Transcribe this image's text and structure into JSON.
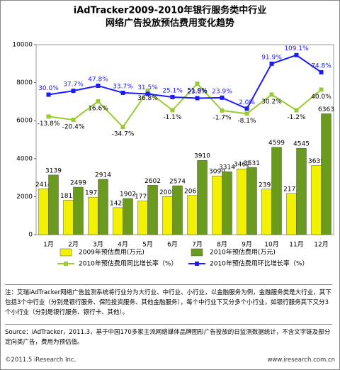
{
  "chart_data": {
    "type": "bar",
    "title": [
      "iAdTracker2009-2010年银行服务类中行业",
      "网络广告投放预估费用变化趋势"
    ],
    "categories": [
      "1月",
      "2月",
      "3月",
      "4月",
      "5月",
      "6月",
      "7月",
      "8月",
      "9月",
      "10月",
      "11月",
      "12月"
    ],
    "ylim": [
      0,
      10000
    ],
    "yticks": [
      0,
      2000,
      4000,
      6000,
      8000,
      10000
    ],
    "y2lim": [
      -250,
      130
    ],
    "series": [
      {
        "name": "2009年预估费用(万元)",
        "color": "#f2f200",
        "values": [
          2414,
          1815,
          1972,
          1422,
          1773,
          2005,
          2061,
          3090,
          3462,
          2397,
          2173,
          3639
        ]
      },
      {
        "name": "2010年预估费用(万元)",
        "color": "#6b9b1e",
        "values": [
          3139,
          2499,
          2914,
          1902,
          2602,
          2574,
          3910,
          3314,
          3531,
          4599,
          4545,
          6363
        ]
      },
      {
        "name": "2010年预估费用同比增长率（%）",
        "type": "line",
        "axis": "y2",
        "color": "#99cc33",
        "values": [
          -13.8,
          -20.4,
          16.6,
          -34.7,
          36.8,
          -1.1,
          51.9,
          -1.7,
          -8.1,
          30.2,
          -1.2,
          40.0
        ],
        "value_labels": [
          "-13.8%",
          "-20.4%",
          "16.6%",
          "-34.7%",
          "36.8%",
          "-1.1%",
          "51.9%",
          "-1.7%",
          "-8.1%",
          "30.2%",
          "-1.2%",
          "40.0%"
        ]
      },
      {
        "name": "2010年预估费用环比增长率（%）",
        "type": "line",
        "axis": "y2",
        "color": "#1a1aff",
        "values": [
          30.0,
          37.7,
          47.8,
          33.7,
          31.5,
          25.1,
          23.0,
          23.9,
          2.0,
          91.9,
          109.1,
          74.8
        ],
        "value_labels": [
          "30.0%",
          "37.7%",
          "47.8%",
          "33.7%",
          "31.5%",
          "25.1%",
          "23.0%",
          "23.9%",
          "2.0%",
          "91.9%",
          "109.1%",
          "74.8%"
        ]
      }
    ]
  },
  "note": "注：艾瑞iAdTracker网络广告监测系统将行业分为大行业、中行业、小行业，以金融服务为例，金融服务类是大行业，其下包括3个中行业（分别是银行服务、保险投资服务、其他金融服务），每个中行业下又分多个小行业，如银行服务其下又分3个小行业（分别是银行服务、银行卡、其他）。",
  "source": "Source：iAdTracker，2011.3，基于中国170多家主流网络媒体品牌图形广告投放的日监测数据统计，不含文字链及部分定向类广告，费用为预估值。",
  "footer": {
    "left": "©2011.5 iResearch Inc.",
    "right": "www.iresearch.com.cn"
  }
}
